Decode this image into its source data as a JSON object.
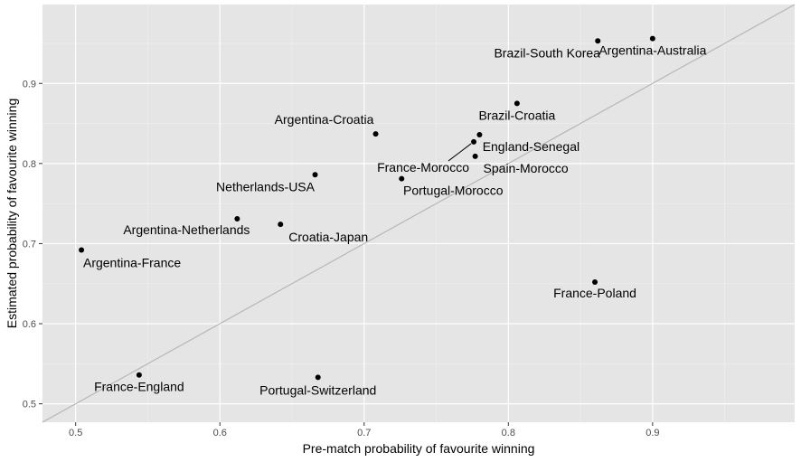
{
  "chart_data": {
    "type": "scatter",
    "title": "",
    "xlabel": "Pre-match probability of favourite winning",
    "ylabel": "Estimated probability of favourite winning",
    "xlim": [
      0.477,
      0.9985
    ],
    "ylim": [
      0.477,
      0.9985
    ],
    "xticks": [
      0.5,
      0.6,
      0.7,
      0.8,
      0.9
    ],
    "yticks": [
      0.5,
      0.6,
      0.7,
      0.8,
      0.9
    ],
    "xtick_labels": [
      "0.5",
      "0.6",
      "0.7",
      "0.8",
      "0.9"
    ],
    "ytick_labels": [
      "0.5",
      "0.6",
      "0.7",
      "0.8",
      "0.9"
    ],
    "grid": true,
    "reference_line": "y = x",
    "points": [
      {
        "label": "Argentina-Australia",
        "x": 0.9,
        "y": 0.956
      },
      {
        "label": "Brazil-South Korea",
        "x": 0.862,
        "y": 0.953
      },
      {
        "label": "Brazil-Croatia",
        "x": 0.806,
        "y": 0.875
      },
      {
        "label": "Argentina-Croatia",
        "x": 0.708,
        "y": 0.837
      },
      {
        "label": "England-Senegal",
        "x": 0.78,
        "y": 0.836
      },
      {
        "label": "France-Morocco",
        "x": 0.776,
        "y": 0.827
      },
      {
        "label": "Spain-Morocco",
        "x": 0.777,
        "y": 0.809
      },
      {
        "label": "Netherlands-USA",
        "x": 0.666,
        "y": 0.786
      },
      {
        "label": "Portugal-Morocco",
        "x": 0.726,
        "y": 0.781
      },
      {
        "label": "Argentina-Netherlands",
        "x": 0.612,
        "y": 0.731
      },
      {
        "label": "Croatia-Japan",
        "x": 0.642,
        "y": 0.724
      },
      {
        "label": "Argentina-France",
        "x": 0.504,
        "y": 0.692
      },
      {
        "label": "France-Poland",
        "x": 0.86,
        "y": 0.652
      },
      {
        "label": "France-England",
        "x": 0.544,
        "y": 0.536
      },
      {
        "label": "Portugal-Switzerland",
        "x": 0.668,
        "y": 0.533
      }
    ]
  },
  "colors": {
    "panel_background": "#e5e5e5",
    "gridline_major": "#ffffff",
    "gridline_minor": "#f0f0f0",
    "reference_line": "#b3b3b3",
    "point": "#000000"
  }
}
